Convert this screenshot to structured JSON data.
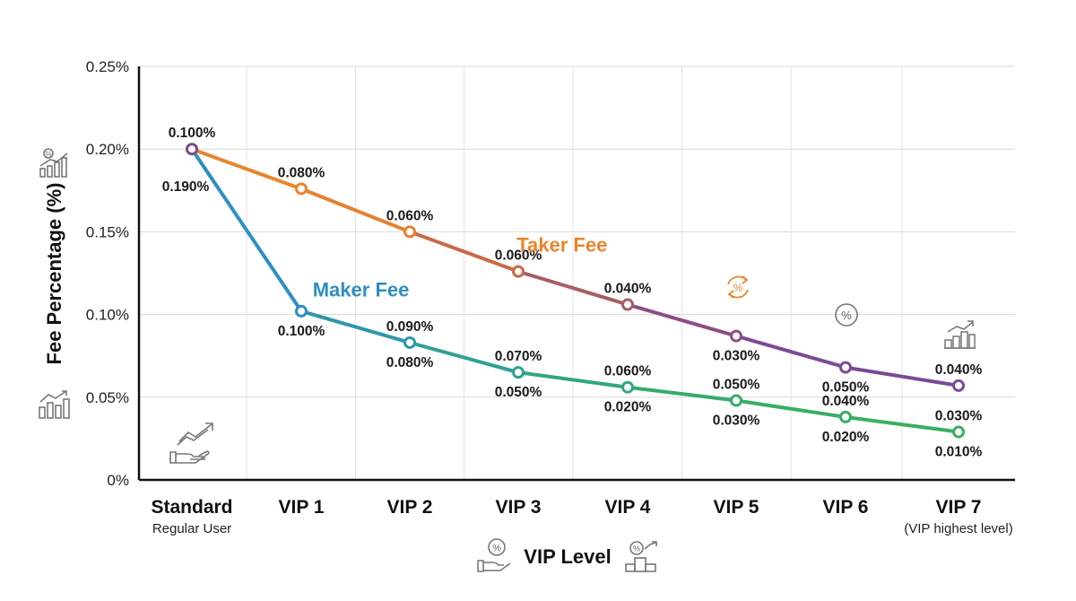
{
  "chart_data": {
    "type": "line",
    "categories": [
      "Standard",
      "VIP 1",
      "VIP 2",
      "VIP 3",
      "VIP 4",
      "VIP 5",
      "VIP 6",
      "VIP 7"
    ],
    "category_sublabels": [
      "Regular User",
      "",
      "",
      "",
      "",
      "",
      "",
      "(VIP highest level)"
    ],
    "xlabel": "VIP Level",
    "ylabel": "Fee Percentage (%)",
    "ylim": [
      0,
      0.25
    ],
    "yticks": [
      0,
      0.05,
      0.1,
      0.15,
      0.2,
      0.25
    ],
    "ytick_labels": [
      "0%",
      "0.05%",
      "0.10%",
      "0.15%",
      "0.20%",
      "0.25%"
    ],
    "grid": true,
    "series": [
      {
        "name": "Taker Fee",
        "values": [
          0.2,
          0.176,
          0.15,
          0.126,
          0.106,
          0.087,
          0.068,
          0.057
        ],
        "colors": [
          "#E8852B",
          "#E8852B",
          "#E5812F",
          "#C96A45",
          "#A85E63",
          "#8D4D86",
          "#7E4A92",
          "#7A4A95"
        ]
      },
      {
        "name": "Maker Fee",
        "values": [
          0.2,
          0.102,
          0.083,
          0.065,
          0.056,
          0.048,
          0.038,
          0.029
        ],
        "colors": [
          "#7E4A92",
          "#2E8FC1",
          "#2E97AA",
          "#2FA193",
          "#32A67F",
          "#35AB6E",
          "#37AE64",
          "#39B05E"
        ]
      }
    ],
    "annotations": [
      {
        "text": "0.100%",
        "point": [
          0,
          0
        ],
        "pos": "above"
      },
      {
        "text": "0.190%",
        "point": [
          0,
          0
        ],
        "pos": "below-left"
      },
      {
        "text": "0.080%",
        "point": [
          0,
          1
        ],
        "pos": "above"
      },
      {
        "text": "0.060%",
        "point": [
          0,
          2
        ],
        "pos": "above"
      },
      {
        "text": "0.060%",
        "point": [
          0,
          3
        ],
        "pos": "above"
      },
      {
        "text": "0.040%",
        "point": [
          0,
          4
        ],
        "pos": "above"
      },
      {
        "text": "0.030%",
        "point": [
          0,
          5
        ],
        "pos": "below"
      },
      {
        "text": "0.050%",
        "point": [
          0,
          6
        ],
        "pos": "below"
      },
      {
        "text": "0.040%",
        "point": [
          0,
          7
        ],
        "pos": "above"
      },
      {
        "text": "0.100%",
        "point": [
          1,
          1
        ],
        "pos": "below"
      },
      {
        "text": "0.090%",
        "point": [
          1,
          2
        ],
        "pos": "above"
      },
      {
        "text": "0.080%",
        "point": [
          1,
          2
        ],
        "pos": "below"
      },
      {
        "text": "0.070%",
        "point": [
          1,
          3
        ],
        "pos": "above"
      },
      {
        "text": "0.050%",
        "point": [
          1,
          3
        ],
        "pos": "below"
      },
      {
        "text": "0.060%",
        "point": [
          1,
          4
        ],
        "pos": "above"
      },
      {
        "text": "0.020%",
        "point": [
          1,
          4
        ],
        "pos": "below"
      },
      {
        "text": "0.050%",
        "point": [
          1,
          5
        ],
        "pos": "above"
      },
      {
        "text": "0.030%",
        "point": [
          1,
          5
        ],
        "pos": "below"
      },
      {
        "text": "0.040%",
        "point": [
          1,
          6
        ],
        "pos": "above"
      },
      {
        "text": "0.020%",
        "point": [
          1,
          6
        ],
        "pos": "below"
      },
      {
        "text": "0.030%",
        "point": [
          1,
          7
        ],
        "pos": "above"
      },
      {
        "text": "0.010%",
        "point": [
          1,
          7
        ],
        "pos": "below"
      }
    ],
    "series_labels": [
      {
        "text": "Taker Fee",
        "color": "#E8852B",
        "near_category": 3.4,
        "near_value": 0.138
      },
      {
        "text": "Maker Fee",
        "color": "#2E8FC1",
        "near_category": 1.55,
        "near_value": 0.111
      }
    ],
    "icons": [
      "percent-chart-icon",
      "growth-bars-icon",
      "hand-growth-icon",
      "percent-cycle-icon",
      "percent-circle-icon",
      "building-growth-icon",
      "hand-percent-icon",
      "podium-growth-icon"
    ]
  }
}
